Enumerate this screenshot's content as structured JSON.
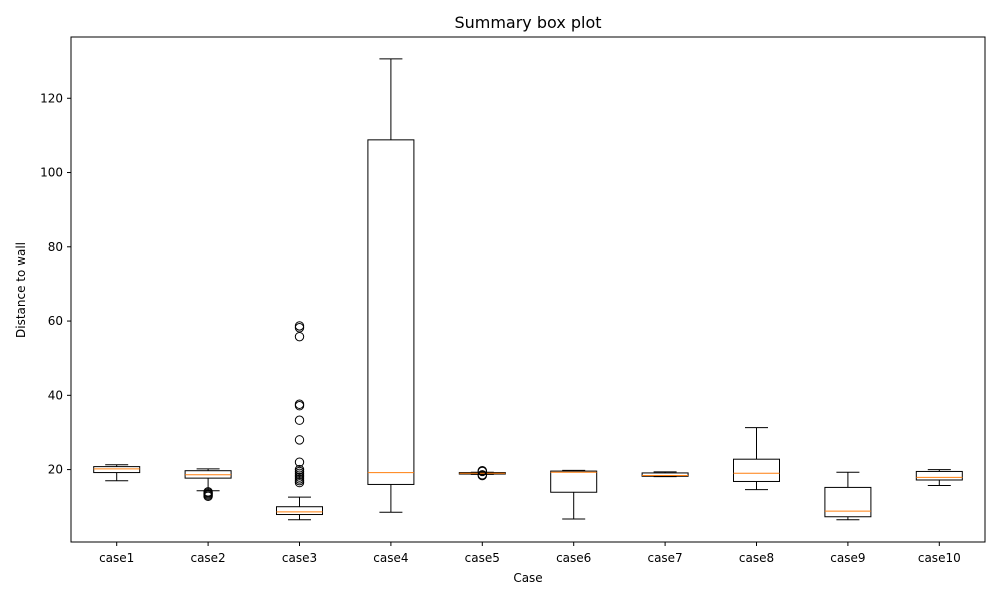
{
  "chart_data": {
    "type": "box",
    "title": "Summary box plot",
    "xlabel": "Case",
    "ylabel": "Distance to wall",
    "ylim": [
      0.5,
      136.5
    ],
    "yticks": [
      20,
      40,
      60,
      80,
      100,
      120
    ],
    "grid": false,
    "colors": {
      "box": "#000000",
      "median": "#ff7f0e",
      "background": "#ffffff"
    },
    "categories": [
      "case1",
      "case2",
      "case3",
      "case4",
      "case5",
      "case6",
      "case7",
      "case8",
      "case9",
      "case10"
    ],
    "boxes": [
      {
        "name": "case1",
        "whislo": 17.0,
        "q1": 19.2,
        "med": 20.2,
        "q3": 20.8,
        "whishi": 21.3,
        "fliers": []
      },
      {
        "name": "case2",
        "whislo": 14.3,
        "q1": 17.7,
        "med": 18.6,
        "q3": 19.7,
        "whishi": 20.2,
        "fliers": [
          12.8,
          13.1,
          13.4,
          13.7,
          14.0
        ]
      },
      {
        "name": "case3",
        "whislo": 6.5,
        "q1": 7.9,
        "med": 8.6,
        "q3": 10.0,
        "whishi": 12.6,
        "fliers": [
          16.5,
          17.0,
          17.5,
          18.0,
          18.5,
          19.0,
          19.5,
          20.0,
          22.0,
          28.0,
          33.3,
          37.2,
          37.6,
          55.8,
          58.2,
          58.7
        ]
      },
      {
        "name": "case4",
        "whislo": 8.5,
        "q1": 16.0,
        "med": 19.2,
        "q3": 108.8,
        "whishi": 130.6,
        "fliers": []
      },
      {
        "name": "case5",
        "whislo": 18.7,
        "q1": 18.8,
        "med": 19.0,
        "q3": 19.2,
        "whishi": 19.3,
        "fliers": [
          18.4,
          18.6,
          19.5,
          19.7
        ]
      },
      {
        "name": "case6",
        "whislo": 6.7,
        "q1": 13.9,
        "med": 19.3,
        "q3": 19.6,
        "whishi": 19.8,
        "fliers": []
      },
      {
        "name": "case7",
        "whislo": 18.1,
        "q1": 18.2,
        "med": 18.4,
        "q3": 19.1,
        "whishi": 19.4,
        "fliers": []
      },
      {
        "name": "case8",
        "whislo": 14.6,
        "q1": 16.8,
        "med": 19.0,
        "q3": 22.8,
        "whishi": 31.3,
        "fliers": []
      },
      {
        "name": "case9",
        "whislo": 6.5,
        "q1": 7.3,
        "med": 8.8,
        "q3": 15.2,
        "whishi": 19.3,
        "fliers": []
      },
      {
        "name": "case10",
        "whislo": 15.7,
        "q1": 17.2,
        "med": 17.9,
        "q3": 19.5,
        "whishi": 20.0,
        "fliers": []
      }
    ]
  }
}
